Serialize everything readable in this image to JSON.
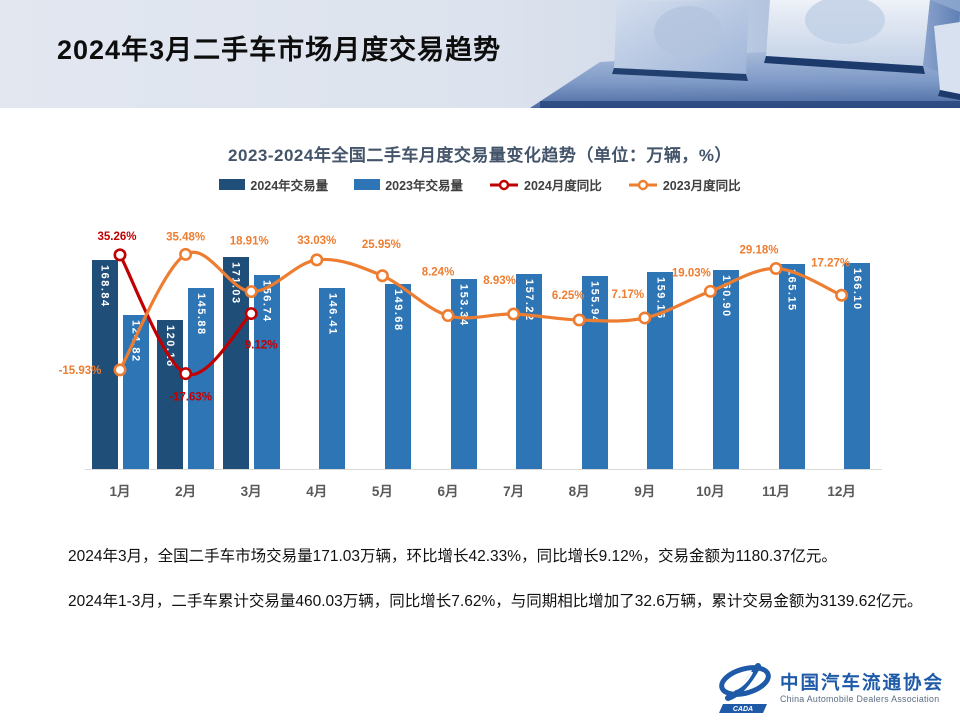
{
  "header": {
    "title": "2024年3月二手车市场月度交易趋势"
  },
  "chart_data": {
    "type": "combo-bar-line",
    "title": "2023-2024年全国二手车月度交易量变化趋势（单位：万辆，%）",
    "unit_note": "单位：万辆，%",
    "categories": [
      "1月",
      "2月",
      "3月",
      "4月",
      "5月",
      "6月",
      "7月",
      "8月",
      "9月",
      "10月",
      "11月",
      "12月"
    ],
    "series": [
      {
        "name": "2024年交易量",
        "kind": "bar",
        "color": "#1F4E79",
        "values": [
          168.84,
          120.16,
          171.03,
          null,
          null,
          null,
          null,
          null,
          null,
          null,
          null,
          null
        ]
      },
      {
        "name": "2023年交易量",
        "kind": "bar",
        "color": "#2E75B6",
        "values": [
          124.82,
          145.88,
          156.74,
          146.41,
          149.68,
          153.34,
          157.22,
          155.94,
          159.16,
          160.9,
          165.15,
          166.1
        ]
      },
      {
        "name": "2024月度同比",
        "kind": "line",
        "color": "#C00000",
        "values": [
          35.26,
          -17.63,
          9.12,
          null,
          null,
          null,
          null,
          null,
          null,
          null,
          null,
          null
        ],
        "labels": [
          "35.26%",
          "-17.63%",
          "9.12%",
          null,
          null,
          null,
          null,
          null,
          null,
          null,
          null,
          null
        ],
        "label_offsets": [
          [
            -3,
            -18
          ],
          [
            5,
            24
          ],
          [
            10,
            32
          ],
          null,
          null,
          null,
          null,
          null,
          null,
          null,
          null,
          null
        ]
      },
      {
        "name": "2023月度同比",
        "kind": "line",
        "color": "#ED7D31",
        "values": [
          -15.93,
          35.48,
          18.91,
          33.03,
          25.95,
          8.24,
          8.93,
          6.25,
          7.17,
          19.03,
          29.18,
          17.27
        ],
        "labels": [
          "-15.93%",
          "35.48%",
          "18.91%",
          "33.03%",
          "25.95%",
          "8.24%",
          "8.93%",
          "6.25%",
          "7.17%",
          "19.03%",
          "29.18%",
          "17.27%"
        ],
        "label_offsets": [
          [
            -40,
            1
          ],
          [
            0,
            -17
          ],
          [
            -2,
            -50
          ],
          [
            0,
            -19
          ],
          [
            -1,
            -31
          ],
          [
            -10,
            -43
          ],
          [
            -14,
            -33
          ],
          [
            -11,
            -24
          ],
          [
            -17,
            -23
          ],
          [
            -19,
            -18
          ],
          [
            -17,
            -18
          ],
          [
            -11,
            -32
          ]
        ]
      }
    ],
    "bar_axis": {
      "min": 0,
      "max": 180
    },
    "pct_axis": {
      "min": -60.5,
      "max": 39.2
    },
    "legend_position": "top",
    "grid": false
  },
  "summary": {
    "line1": "2024年3月，全国二手车市场交易量171.03万辆，环比增长42.33%，同比增长9.12%，交易金额为1180.37亿元。",
    "line2": "2024年1-3月，二手车累计交易量460.03万辆，同比增长7.62%，与同期相比增加了32.6万辆，累计交易金额为3139.62亿元。"
  },
  "logo": {
    "badge": "CADA",
    "name_cn": "中国汽车流通协会",
    "name_en": "China Automobile Dealers Association"
  },
  "colors": {
    "bar_2024": "#1F4E79",
    "bar_2023": "#2E75B6",
    "line_2024": "#C00000",
    "line_2023": "#ED7D31",
    "axis": "#d9d9d9",
    "month_label": "#595959",
    "chart_title": "#44546A",
    "logo_blue": "#1E5AA8"
  }
}
